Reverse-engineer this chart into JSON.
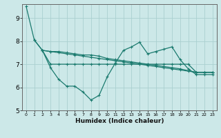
{
  "xlabel": "Humidex (Indice chaleur)",
  "background_color": "#cce8e8",
  "line_color": "#1a7a6e",
  "grid_color": "#aad0d0",
  "xlim": [
    -0.5,
    23.5
  ],
  "ylim": [
    5.0,
    9.6
  ],
  "yticks": [
    5,
    6,
    7,
    8,
    9
  ],
  "xticks": [
    0,
    1,
    2,
    3,
    4,
    5,
    6,
    7,
    8,
    9,
    10,
    11,
    12,
    13,
    14,
    15,
    16,
    17,
    18,
    19,
    20,
    21,
    22,
    23
  ],
  "series": {
    "line1": {
      "x": [
        0,
        1,
        2,
        3,
        4,
        5,
        6,
        7,
        8,
        9,
        10,
        11,
        12,
        13,
        14,
        15,
        16,
        17,
        18,
        19,
        20,
        21,
        22,
        23
      ],
      "y": [
        9.5,
        8.05,
        7.6,
        7.55,
        7.55,
        7.5,
        7.45,
        7.4,
        7.4,
        7.35,
        7.25,
        7.2,
        7.15,
        7.1,
        7.05,
        7.0,
        6.95,
        6.9,
        6.85,
        6.8,
        6.72,
        6.65,
        6.65,
        6.65
      ]
    },
    "line2": {
      "x": [
        1,
        2,
        3,
        4,
        5,
        6,
        7,
        8,
        9,
        10,
        11,
        12,
        13,
        14,
        15,
        16,
        17,
        18,
        19,
        20,
        21,
        22,
        23
      ],
      "y": [
        8.05,
        7.6,
        6.85,
        6.35,
        6.05,
        6.05,
        5.8,
        5.45,
        5.65,
        6.45,
        7.05,
        7.6,
        7.75,
        7.95,
        7.45,
        7.55,
        7.65,
        7.75,
        7.2,
        6.8,
        6.55,
        6.55,
        6.55
      ]
    },
    "line3": {
      "x": [
        2,
        3,
        4,
        5,
        6,
        7,
        8,
        9,
        10,
        11,
        12,
        13,
        14,
        15,
        16,
        17,
        18,
        19,
        20,
        21,
        22,
        23
      ],
      "y": [
        7.6,
        7.55,
        7.5,
        7.45,
        7.4,
        7.35,
        7.3,
        7.25,
        7.2,
        7.15,
        7.1,
        7.05,
        7.0,
        6.95,
        6.9,
        6.85,
        6.8,
        6.75,
        6.7,
        6.65,
        6.65,
        6.65
      ]
    },
    "line4": {
      "x": [
        2,
        3,
        4,
        5,
        6,
        7,
        8,
        9,
        10,
        11,
        12,
        13,
        14,
        15,
        16,
        17,
        18,
        19,
        20,
        21,
        22,
        23
      ],
      "y": [
        7.6,
        7.0,
        7.0,
        7.0,
        7.0,
        7.0,
        7.0,
        7.0,
        7.0,
        7.0,
        7.0,
        7.0,
        7.0,
        7.0,
        7.0,
        7.0,
        7.0,
        7.0,
        7.0,
        6.65,
        6.65,
        6.65
      ]
    }
  }
}
